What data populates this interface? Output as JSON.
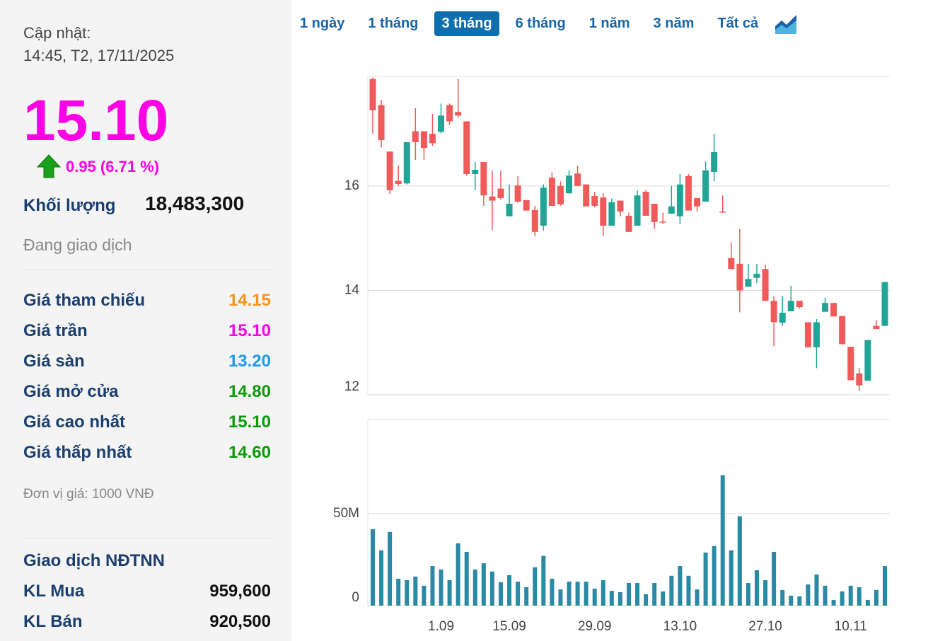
{
  "panel": {
    "update_label": "Cập nhật:",
    "update_time": "14:45, T2, 17/11/2025",
    "price": "15.10",
    "price_color": "#ff00e6",
    "change": "0.95 (6.71 %)",
    "volume_label": "Khối lượng",
    "volume": "18,483,300",
    "status": "Đang giao dịch",
    "rows": [
      {
        "label": "Giá tham chiếu",
        "value": "14.15",
        "color": "#f7931e"
      },
      {
        "label": "Giá trần",
        "value": "15.10",
        "color": "#ff00e6"
      },
      {
        "label": "Giá sàn",
        "value": "13.20",
        "color": "#1e9be9"
      },
      {
        "label": "Giá mở cửa",
        "value": "14.80",
        "color": "#0a9b0a"
      },
      {
        "label": "Giá cao nhất",
        "value": "15.10",
        "color": "#0a9b0a"
      },
      {
        "label": "Giá thấp nhất",
        "value": "14.60",
        "color": "#0a9b0a"
      }
    ],
    "unit": "Đơn vị giá: 1000 VNĐ",
    "foreign_title": "Giao dịch NĐTNN",
    "foreign_rows": [
      {
        "label": "KL Mua",
        "value": "959,600"
      },
      {
        "label": "KL Bán",
        "value": "920,500"
      }
    ]
  },
  "tabs": {
    "items": [
      "1 ngày",
      "1 tháng",
      "3 tháng",
      "6 tháng",
      "1 năm",
      "3 năm",
      "Tất cả"
    ],
    "active": 2
  },
  "chart_data": [
    {
      "type": "candlestick",
      "up_color": "#22a596",
      "down_color": "#f05a5a",
      "open": [
        18.05,
        17.55,
        16.66,
        16.1,
        16.05,
        17.05,
        17.05,
        17.0,
        17.04,
        17.55,
        17.42,
        17.24,
        16.23,
        16.46,
        15.8,
        15.95,
        15.42,
        16.01,
        15.73,
        15.54,
        15.24,
        16.16,
        16.0,
        15.86,
        16.24,
        16.03,
        15.81,
        15.78,
        15.24,
        15.72,
        15.43,
        15.24,
        15.89,
        15.66,
        15.32,
        15.47,
        15.42,
        16.19,
        15.77,
        15.7,
        16.27,
        15.51,
        14.62,
        14.51,
        14.07,
        14.24,
        14.41,
        13.8,
        13.38,
        13.6,
        13.8,
        13.39,
        12.91,
        13.59,
        13.76,
        13.51,
        12.92,
        12.41,
        12.27,
        13.32,
        13.32
      ],
      "high": [
        18.08,
        17.65,
        16.66,
        16.4,
        16.84,
        17.49,
        17.05,
        17.38,
        17.58,
        17.58,
        18.05,
        17.24,
        16.46,
        16.46,
        16.3,
        16.3,
        16.03,
        16.19,
        15.73,
        15.62,
        16.03,
        16.26,
        16.09,
        16.3,
        16.39,
        16.03,
        15.89,
        15.86,
        15.76,
        15.72,
        15.49,
        15.92,
        15.92,
        15.66,
        15.49,
        16.0,
        16.23,
        16.23,
        15.77,
        16.47,
        17.0,
        15.82,
        14.92,
        15.18,
        14.51,
        14.51,
        14.49,
        13.89,
        13.89,
        14.09,
        13.8,
        13.39,
        13.45,
        13.86,
        13.76,
        13.51,
        12.92,
        12.51,
        13.05,
        13.43,
        14.16
      ],
      "low": [
        17.0,
        16.74,
        15.85,
        16.0,
        16.03,
        16.5,
        16.5,
        16.77,
        17.01,
        17.17,
        17.31,
        16.2,
        15.92,
        15.62,
        15.15,
        15.74,
        15.42,
        15.68,
        15.53,
        15.04,
        15.15,
        15.62,
        15.62,
        15.86,
        16.0,
        15.61,
        15.59,
        15.04,
        15.24,
        15.42,
        15.12,
        15.24,
        15.43,
        15.18,
        15.27,
        15.47,
        15.27,
        15.53,
        15.51,
        15.7,
        16.09,
        15.49,
        14.41,
        13.58,
        14.07,
        14.14,
        13.8,
        12.93,
        13.32,
        13.6,
        13.65,
        12.91,
        12.51,
        13.59,
        13.5,
        12.96,
        12.28,
        12.07,
        12.27,
        13.26,
        13.32
      ],
      "close": [
        17.45,
        16.88,
        15.92,
        16.04,
        16.84,
        16.84,
        16.73,
        16.82,
        17.35,
        17.24,
        17.35,
        16.23,
        16.31,
        15.82,
        15.72,
        15.77,
        15.66,
        15.7,
        15.53,
        15.12,
        15.97,
        15.62,
        15.65,
        16.2,
        16.0,
        15.61,
        15.62,
        15.24,
        15.69,
        15.51,
        15.12,
        15.82,
        15.43,
        15.31,
        15.3,
        15.61,
        16.03,
        15.53,
        15.61,
        16.3,
        16.65,
        15.49,
        14.41,
        14.0,
        14.22,
        14.32,
        13.8,
        13.39,
        13.57,
        13.8,
        13.68,
        12.91,
        13.39,
        13.76,
        13.5,
        12.97,
        12.28,
        12.18,
        13.05,
        13.26,
        14.16
      ],
      "ylim": [
        12,
        18.1
      ],
      "yticks": [
        12,
        14,
        16
      ],
      "grid": true
    },
    {
      "type": "bar",
      "color": "#2b8aa3",
      "categories": [
        null,
        null,
        null,
        null,
        null,
        null,
        null,
        null,
        "1.09",
        null,
        null,
        null,
        null,
        null,
        null,
        null,
        "15.09",
        null,
        null,
        null,
        null,
        null,
        null,
        null,
        null,
        null,
        "29.09",
        null,
        null,
        null,
        null,
        null,
        null,
        null,
        null,
        null,
        "13.10",
        null,
        null,
        null,
        null,
        null,
        null,
        null,
        null,
        null,
        "27.10",
        null,
        null,
        null,
        null,
        null,
        null,
        null,
        null,
        null,
        "10.11",
        null,
        null,
        null,
        null
      ],
      "values": [
        41.5,
        30,
        40,
        14.6,
        13.8,
        15.8,
        10.8,
        21.5,
        19.6,
        13.8,
        33.8,
        29.2,
        19.6,
        23,
        18.5,
        12.7,
        16.5,
        13,
        10,
        20.8,
        27,
        14.6,
        8.8,
        13,
        13,
        13,
        9.2,
        13.8,
        8,
        7.3,
        12.3,
        12.3,
        6.2,
        12.3,
        7.7,
        16.2,
        21.5,
        16.2,
        8.8,
        28.8,
        32.3,
        70.8,
        30,
        48.5,
        12.3,
        19.2,
        13.8,
        29.2,
        8.5,
        5.4,
        5,
        11.5,
        16.9,
        10.8,
        3.1,
        7.7,
        10.8,
        10,
        3.1,
        8.5,
        21.5
      ],
      "ylim": [
        0,
        101
      ],
      "yticks": [
        0,
        {
          "value": 50,
          "label": "50M"
        }
      ],
      "grid": true
    }
  ]
}
